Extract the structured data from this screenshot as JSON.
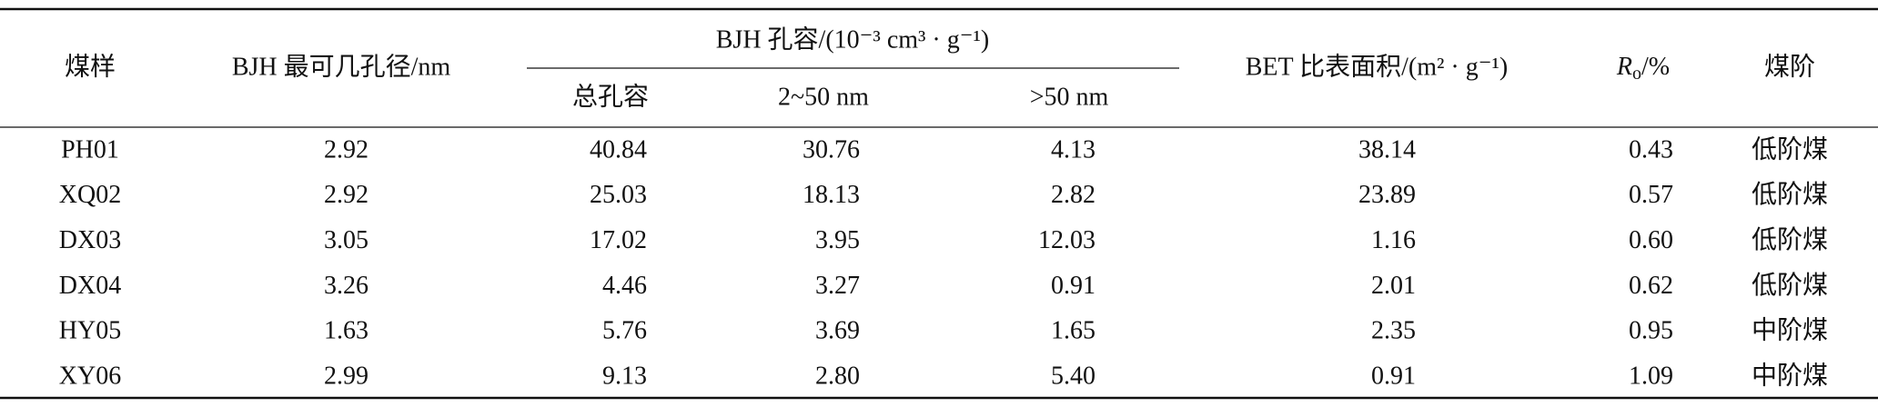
{
  "table": {
    "header": {
      "sample": "煤样",
      "bjh_diameter": "BJH 最可几孔径/nm",
      "bjh_volume": "BJH 孔容/(10⁻³ cm³ · g⁻¹)",
      "total": "总孔容",
      "meso": "2~50 nm",
      "macro": ">50 nm",
      "bet": "BET 比表面积/(m² · g⁻¹)",
      "ro": {
        "symbol": "R",
        "subscript": "o",
        "unit": "/%"
      },
      "rank": "煤阶"
    },
    "rows": [
      [
        "PH01",
        "2.92",
        "40.84",
        "30.76",
        "4.13",
        "38.14",
        "0.43",
        "低阶煤"
      ],
      [
        "XQ02",
        "2.92",
        "25.03",
        "18.13",
        "2.82",
        "23.89",
        "0.57",
        "低阶煤"
      ],
      [
        "DX03",
        "3.05",
        "17.02",
        "3.95",
        "12.03",
        "1.16",
        "0.60",
        "低阶煤"
      ],
      [
        "DX04",
        "3.26",
        "4.46",
        "3.27",
        "0.91",
        "2.01",
        "0.62",
        "低阶煤"
      ],
      [
        "HY05",
        "1.63",
        "5.76",
        "3.69",
        "1.65",
        "2.35",
        "0.95",
        "中阶煤"
      ],
      [
        "XY06",
        "2.99",
        "9.13",
        "2.80",
        "5.40",
        "0.91",
        "1.09",
        "中阶煤"
      ]
    ]
  }
}
